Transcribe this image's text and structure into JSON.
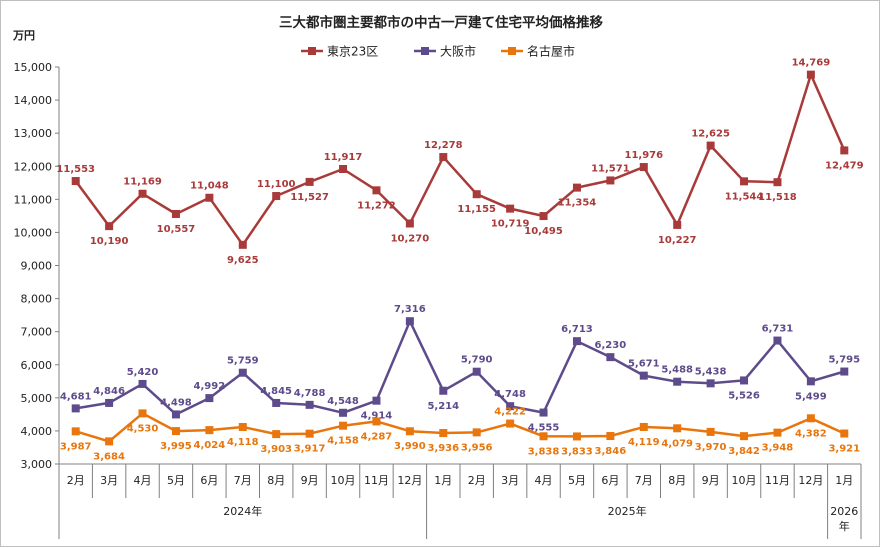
{
  "chart_data": {
    "type": "line",
    "title": "三大都市圏主要都市の中古一戸建て住宅平均価格推移",
    "ylabel": "万円",
    "ylim": [
      3000,
      15000
    ],
    "ytick_step": 1000,
    "grid": false,
    "legend_position": "top-center",
    "categories": [
      "2月",
      "3月",
      "4月",
      "5月",
      "6月",
      "7月",
      "8月",
      "9月",
      "10月",
      "11月",
      "12月",
      "1月",
      "2月",
      "3月",
      "4月",
      "5月",
      "6月",
      "7月",
      "8月",
      "9月",
      "10月",
      "11月",
      "12月",
      "1月"
    ],
    "years": [
      {
        "label": "2024年",
        "start": 0,
        "end": 10
      },
      {
        "label": "2025年",
        "start": 11,
        "end": 22
      },
      {
        "label": "2026年",
        "start": 23,
        "end": 23
      }
    ],
    "series": [
      {
        "name": "東京23区",
        "color": "#a93a3a",
        "values": [
          11553,
          10190,
          11169,
          10557,
          11048,
          9625,
          11100,
          11527,
          11917,
          11272,
          10270,
          12278,
          11155,
          10719,
          10495,
          11354,
          11571,
          11976,
          10227,
          12625,
          11544,
          11518,
          14769,
          12479
        ],
        "labels": [
          "11,553",
          "10,190",
          "11,169",
          "10,557",
          "11,048",
          "9,625",
          "11,100",
          "11,527",
          "11,917",
          "11,272",
          "10,270",
          "12,278",
          "11,155",
          "10,719",
          "10,495",
          "11,354",
          "11,571",
          "11,976",
          "10,227",
          "12,625",
          "11,544",
          "11,518",
          "14,769",
          "12,479"
        ]
      },
      {
        "name": "大阪市",
        "color": "#5e4b8b",
        "values": [
          4681,
          4846,
          5420,
          4498,
          4992,
          5759,
          4845,
          4788,
          4548,
          4914,
          7316,
          5214,
          5790,
          4748,
          4555,
          6713,
          6230,
          5671,
          5488,
          5438,
          5526,
          6731,
          5499,
          5795
        ],
        "labels": [
          "4,681",
          "4,846",
          "5,420",
          "4,498",
          "4,992",
          "5,759",
          "4,845",
          "4,788",
          "4,548",
          "4,914",
          "7,316",
          "5,214",
          "5,790",
          "4,748",
          "4,555",
          "6,713",
          "6,230",
          "5,671",
          "5,488",
          "5,438",
          "5,526",
          "6,731",
          "5,499",
          "5,795"
        ]
      },
      {
        "name": "名古屋市",
        "color": "#e8760c",
        "values": [
          3987,
          3684,
          4530,
          3995,
          4024,
          4118,
          3903,
          3917,
          4158,
          4287,
          3990,
          3936,
          3956,
          4222,
          3838,
          3833,
          3846,
          4119,
          4079,
          3970,
          3842,
          3948,
          4382,
          3921
        ],
        "labels": [
          "3,987",
          "3,684",
          "4,530",
          "3,995",
          "4,024",
          "4,118",
          "3,903",
          "3,917",
          "4,158",
          "4,287",
          "3,990",
          "3,936",
          "3,956",
          "4,222",
          "3,838",
          "3,833",
          "3,846",
          "4,119",
          "4,079",
          "3,970",
          "3,842",
          "3,948",
          "4,382",
          "3,921"
        ]
      }
    ]
  }
}
